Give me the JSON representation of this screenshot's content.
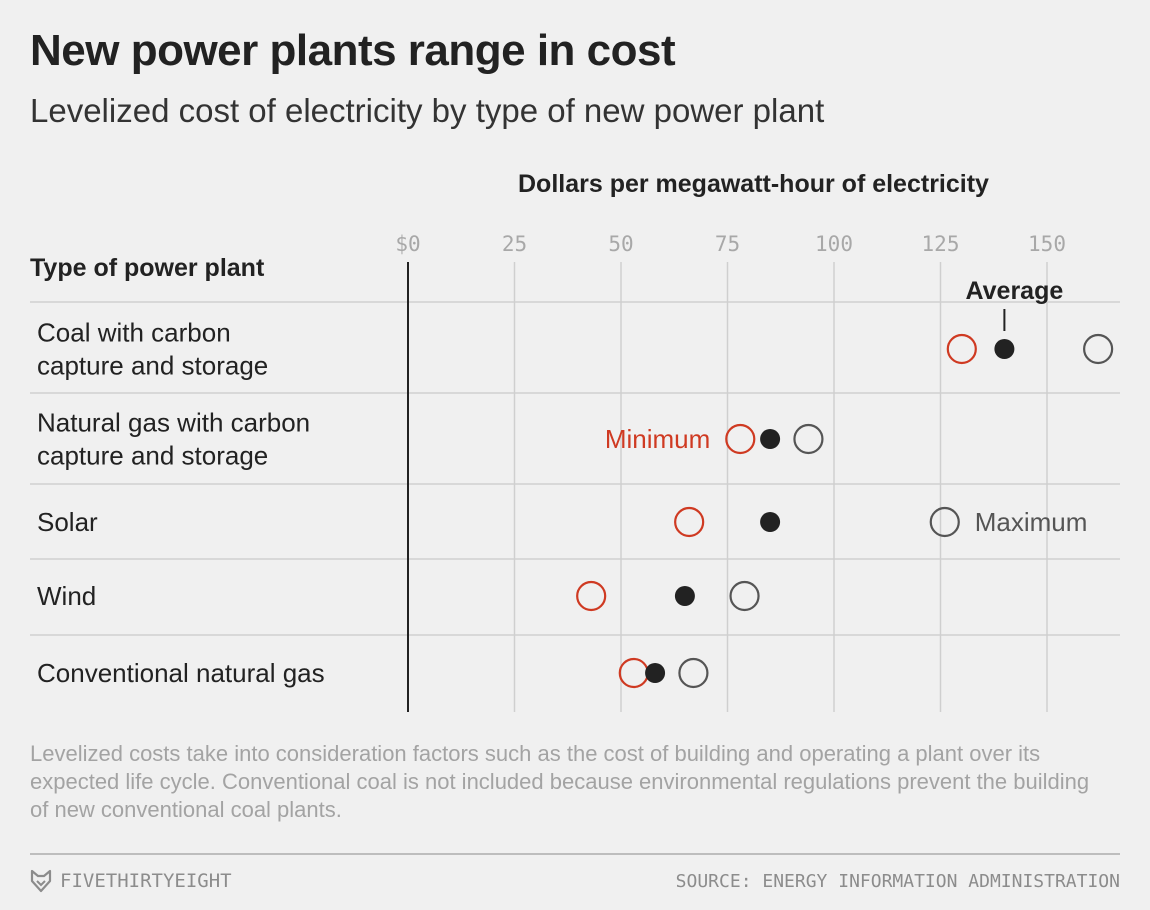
{
  "header": {
    "title": "New power plants range in cost",
    "subtitle": "Levelized cost of electricity by type of new power plant"
  },
  "chart_data": {
    "type": "dot",
    "xlabel": "Dollars per megawatt-hour of electricity",
    "row_header": "Type of power plant",
    "xlim": [
      0,
      160
    ],
    "ticks": [
      0,
      25,
      50,
      75,
      100,
      125,
      150
    ],
    "tick_labels": [
      "$0",
      "25",
      "50",
      "75",
      "100",
      "125",
      "150"
    ],
    "grid": true,
    "categories": [
      [
        "Coal with carbon",
        "capture and storage"
      ],
      [
        "Natural gas with carbon",
        "capture and storage"
      ],
      [
        "Solar"
      ],
      [
        "Wind"
      ],
      [
        "Conventional natural gas"
      ]
    ],
    "series": [
      {
        "name": "Minimum",
        "color": "#cf3a22",
        "marker": "open-circle",
        "values": [
          130,
          78,
          66,
          43,
          53
        ]
      },
      {
        "name": "Average",
        "color": "#222222",
        "marker": "filled-circle",
        "values": [
          140,
          85,
          85,
          65,
          58
        ]
      },
      {
        "name": "Maximum",
        "color": "#555555",
        "marker": "open-circle",
        "values": [
          162,
          94,
          126,
          79,
          67
        ]
      }
    ]
  },
  "footnote": "Levelized costs take into consideration factors such as the cost of building and operating a plant over its expected life cycle. Conventional coal is not included because environmental regulations prevent the building of new conventional coal plants.",
  "footer": {
    "brand": "FIVETHIRTYEIGHT",
    "source": "SOURCE: ENERGY INFORMATION ADMINISTRATION"
  },
  "icons": {
    "brand_icon": "fox-icon"
  }
}
